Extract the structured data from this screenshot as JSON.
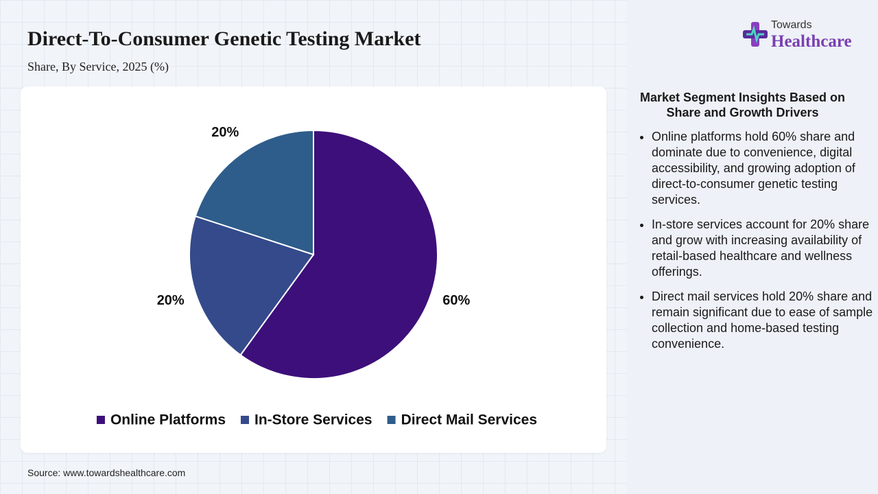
{
  "header": {
    "title": "Direct-To-Consumer Genetic Testing Market",
    "subtitle": "Share, By Service, 2025 (%)"
  },
  "logo": {
    "line1": "Towards",
    "line2": "Healthcare"
  },
  "chart_data": {
    "type": "pie",
    "categories": [
      "Online Platforms",
      "In-Store Services",
      "Direct Mail Services"
    ],
    "values": [
      60,
      20,
      20
    ],
    "value_labels": [
      "60%",
      "20%",
      "20%"
    ],
    "colors": [
      "#3d0f7a",
      "#344a8b",
      "#2e5d8b"
    ],
    "legend": "bottom"
  },
  "insights": {
    "title": "Market Segment Insights Based on Share and Growth Drivers",
    "items": [
      "Online platforms hold 60% share and dominate due to convenience, digital accessibility, and growing adoption of direct-to-consumer genetic testing services.",
      "In-store services account for 20% share and grow with increasing availability of retail-based healthcare and wellness offerings.",
      "Direct mail services hold 20% share and remain significant due to ease of sample collection and home-based testing convenience."
    ]
  },
  "source": "Source: www.towardshealthcare.com"
}
